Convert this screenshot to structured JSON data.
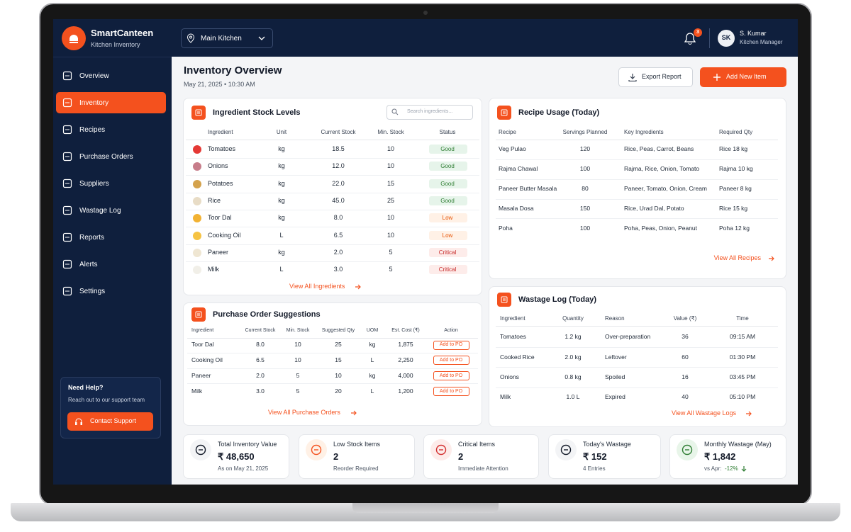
{
  "brand": {
    "name": "SmartCanteen",
    "subtitle": "Kitchen Inventory"
  },
  "location": "Main Kitchen",
  "notifications": "3",
  "user": {
    "initials": "SK",
    "name": "S. Kumar",
    "role": "Kitchen Manager"
  },
  "nav": [
    "Overview",
    "Inventory",
    "Recipes",
    "Purchase Orders",
    "Suppliers",
    "Wastage Log",
    "Reports",
    "Alerts",
    "Settings"
  ],
  "help": {
    "title": "Need Help?",
    "text": "Reach out to our support team",
    "button": "Contact Support"
  },
  "header": {
    "title": "Inventory Overview",
    "date": "May 21, 2025  •  10:30 AM",
    "export": "Export Report",
    "add": "Add New Item"
  },
  "stock": {
    "title": "Ingredient Stock Levels",
    "search_placeholder": "Search ingredients...",
    "columns": [
      "Ingredient",
      "Unit",
      "Current Stock",
      "Min. Stock",
      "Status"
    ],
    "rows": [
      [
        "Tomatoes",
        "kg",
        "18.5",
        "10",
        "Good"
      ],
      [
        "Onions",
        "kg",
        "12.0",
        "10",
        "Good"
      ],
      [
        "Potatoes",
        "kg",
        "22.0",
        "15",
        "Good"
      ],
      [
        "Rice",
        "kg",
        "45.0",
        "25",
        "Good"
      ],
      [
        "Toor Dal",
        "kg",
        "8.0",
        "10",
        "Low"
      ],
      [
        "Cooking Oil",
        "L",
        "6.5",
        "10",
        "Low"
      ],
      [
        "Paneer",
        "kg",
        "2.0",
        "5",
        "Critical"
      ],
      [
        "Milk",
        "L",
        "3.0",
        "5",
        "Critical"
      ]
    ],
    "link": "View All Ingredients"
  },
  "purchase": {
    "title": "Purchase Order Suggestions",
    "columns": [
      "Ingredient",
      "Current Stock",
      "Min. Stock",
      "Suggested Qty",
      "UOM",
      "Est. Cost (₹)",
      "Action"
    ],
    "rows": [
      [
        "Toor Dal",
        "8.0",
        "10",
        "25",
        "kg",
        "1,875"
      ],
      [
        "Cooking Oil",
        "6.5",
        "10",
        "15",
        "L",
        "2,250"
      ],
      [
        "Paneer",
        "2.0",
        "5",
        "10",
        "kg",
        "4,000"
      ],
      [
        "Milk",
        "3.0",
        "5",
        "20",
        "L",
        "1,200"
      ]
    ],
    "action_label": "Add to PO",
    "link": "View All Purchase Orders"
  },
  "recipes": {
    "title": "Recipe Usage (Today)",
    "columns": [
      "Recipe",
      "Servings Planned",
      "Key Ingredients",
      "Required Qty"
    ],
    "rows": [
      [
        "Veg Pulao",
        "120",
        "Rice, Peas, Carrot, Beans",
        "Rice 18 kg"
      ],
      [
        "Rajma Chawal",
        "100",
        "Rajma, Rice, Onion, Tomato",
        "Rajma 10 kg"
      ],
      [
        "Paneer Butter Masala",
        "80",
        "Paneer, Tomato, Onion, Cream",
        "Paneer 8 kg"
      ],
      [
        "Masala Dosa",
        "150",
        "Rice, Urad Dal, Potato",
        "Rice 15 kg"
      ],
      [
        "Poha",
        "100",
        "Poha, Peas, Onion, Peanut",
        "Poha 12 kg"
      ]
    ],
    "link": "View All Recipes"
  },
  "wastage": {
    "title": "Wastage Log (Today)",
    "columns": [
      "Ingredient",
      "Quantity",
      "Reason",
      "Value (₹)",
      "Time"
    ],
    "rows": [
      [
        "Tomatoes",
        "1.2 kg",
        "Over-preparation",
        "36",
        "09:15 AM"
      ],
      [
        "Cooked Rice",
        "2.0 kg",
        "Leftover",
        "60",
        "01:30 PM"
      ],
      [
        "Onions",
        "0.8 kg",
        "Spoiled",
        "16",
        "03:45 PM"
      ],
      [
        "Milk",
        "1.0 L",
        "Expired",
        "40",
        "05:10 PM"
      ]
    ],
    "link": "View All Wastage Logs"
  },
  "stats": [
    {
      "label": "Total Inventory Value",
      "value": "₹ 48,650",
      "sub": "As on May 21, 2025"
    },
    {
      "label": "Low Stock Items",
      "value": "2",
      "sub": "Reorder Required"
    },
    {
      "label": "Critical Items",
      "value": "2",
      "sub": "Immediate Attention"
    },
    {
      "label": "Today's Wastage",
      "value": "₹ 152",
      "sub": "4 Entries"
    },
    {
      "label": "Monthly Wastage (May)",
      "value": "₹ 1,842",
      "sub": "vs Apr:",
      "change": "-12%"
    }
  ]
}
